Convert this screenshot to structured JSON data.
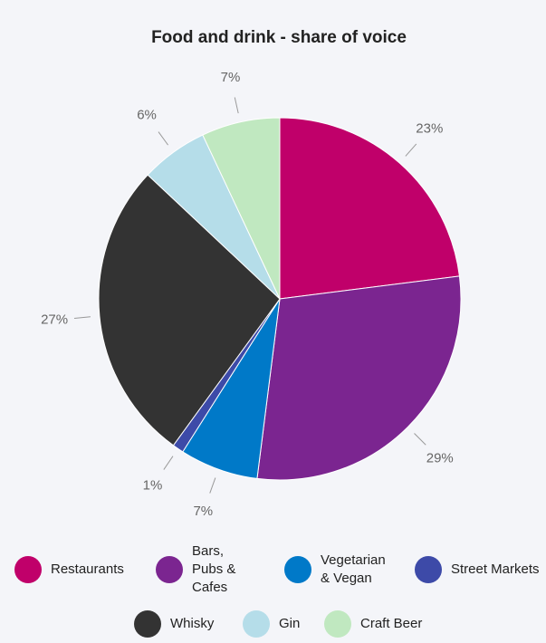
{
  "chart_data": {
    "type": "pie",
    "title": "Food and drink - share of voice",
    "categories": [
      "Restaurants",
      "Bars, Pubs & Cafes",
      "Vegetarian & Vegan",
      "Street Markets",
      "Whisky",
      "Gin",
      "Craft Beer"
    ],
    "values": [
      23,
      29,
      7,
      1,
      27,
      6,
      7
    ],
    "value_labels": [
      "23%",
      "29%",
      "7%",
      "1%",
      "27%",
      "6%",
      "7%"
    ],
    "colors": [
      "#c0006a",
      "#7b2590",
      "#0079c8",
      "#3d4aa8",
      "#333333",
      "#b5dde9",
      "#c0e8c0"
    ]
  }
}
